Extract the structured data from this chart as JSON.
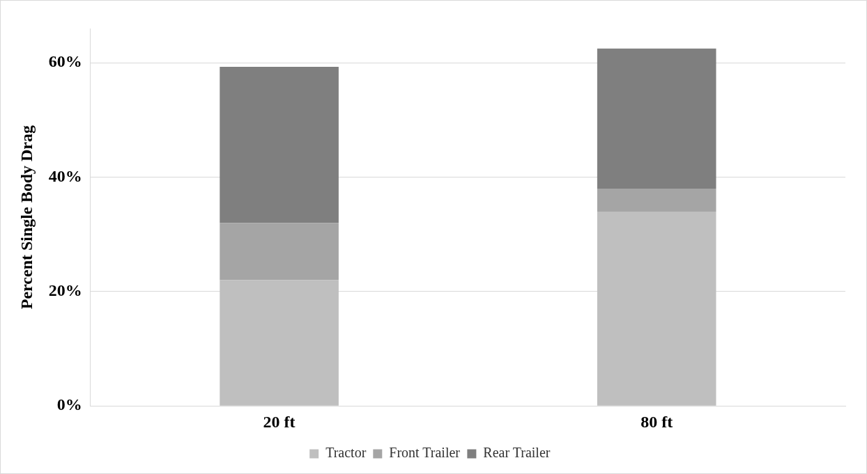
{
  "chart_data": {
    "type": "bar",
    "ylabel": "Percent Single Body Drag",
    "categories": [
      "20 ft",
      "80 ft"
    ],
    "stacked": true,
    "series": [
      {
        "name": "Tractor",
        "color": "#bfbfbf",
        "values": [
          22,
          34
        ]
      },
      {
        "name": "Front Trailer",
        "color": "#a5a5a5",
        "values": [
          10,
          4
        ]
      },
      {
        "name": "Rear Trailer",
        "color": "#7f7f7f",
        "values": [
          27.3,
          24.5
        ]
      }
    ],
    "ylim": [
      0,
      66
    ],
    "yticks": [
      {
        "value": 0,
        "label": "0%"
      },
      {
        "value": 20,
        "label": "20%"
      },
      {
        "value": 40,
        "label": "40%"
      },
      {
        "value": 60,
        "label": "60%"
      }
    ],
    "grid": "y",
    "legend": "bottom"
  }
}
